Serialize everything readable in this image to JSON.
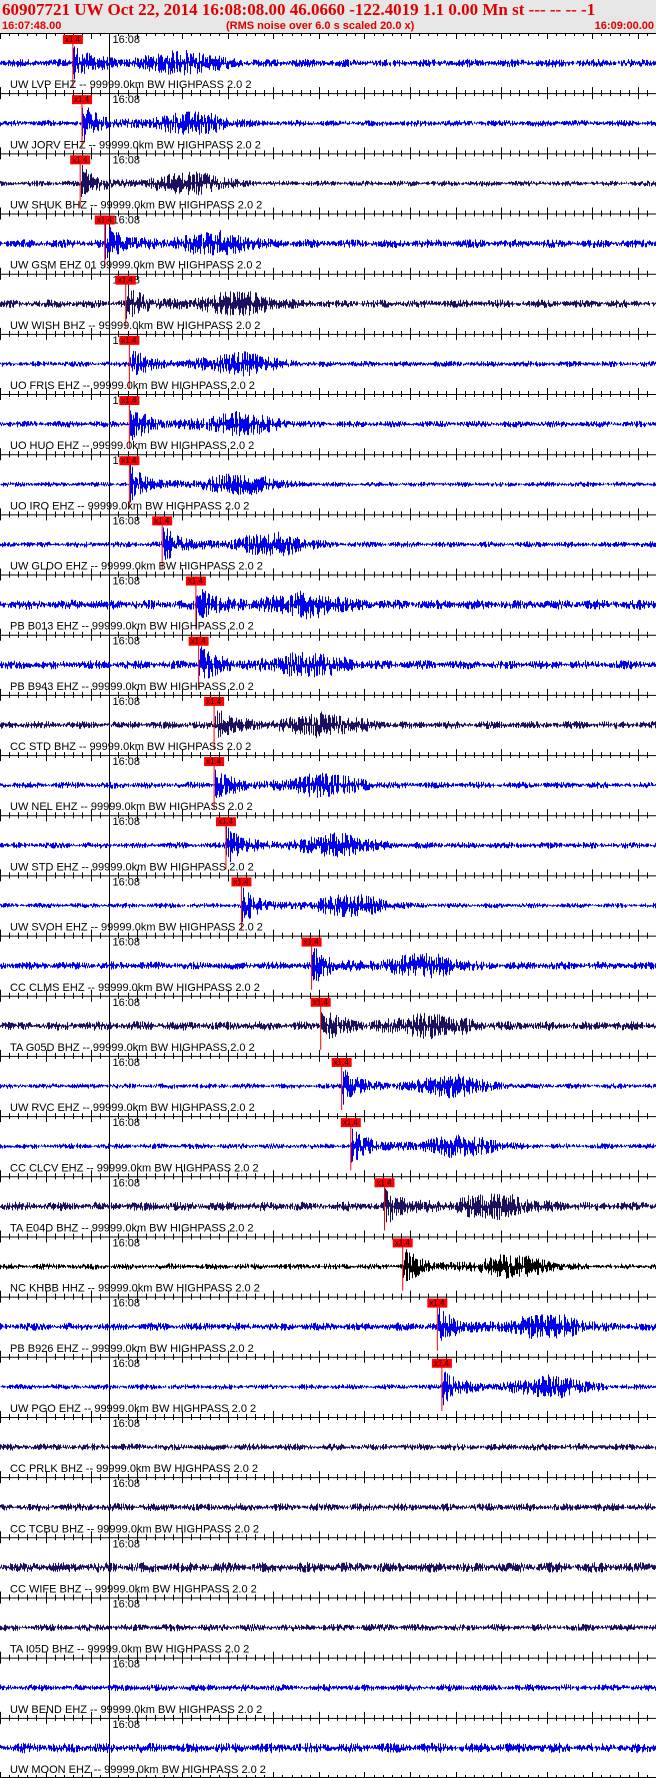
{
  "header": {
    "title": "60907721 UW Oct 22, 2014 16:08:08.00   46.0660 -122.4019  1.1 0.00 Mn st --- -- --  -1",
    "start_time": "16:07:48.00",
    "note": "(RMS noise over 6.0 s scaled 20.0 x)",
    "end_time": "16:09:00.00"
  },
  "colors": {
    "header_text": "#e00000",
    "header_bg": "#e6e6e6",
    "pick": "#ff0000"
  },
  "chart_data": {
    "type": "line",
    "title": "60907721 UW Oct 22, 2014 16:08:08.00   46.0660 -122.4019  1.1 0.00 Mn st --- -- --  -1",
    "x_range": [
      "16:07:48.00",
      "16:09:00.00"
    ],
    "x_range_seconds": [
      0,
      72
    ],
    "minute_tick_label": "16:08",
    "minute_tick_seconds": 12,
    "pick_tag": "x1.4",
    "traces": [
      {
        "label": "UW LVP EHZ -- 99999.0km BW  HIGHPASS  2.0  2",
        "pick_seconds": 8.0,
        "color": "#0000ee"
      },
      {
        "label": "UW JORV EHZ -- 99999.0km BW  HIGHPASS  2.0  2",
        "pick_seconds": 9.0,
        "color": "#0000ee"
      },
      {
        "label": "UW SHUK BHZ -- 99999.0km BW  HIGHPASS  2.0  2",
        "pick_seconds": 8.8,
        "color": "#1c1060"
      },
      {
        "label": "UW GSM EHZ 01 99999.0km BW  HIGHPASS  2.0  2",
        "pick_seconds": 11.5,
        "color": "#0000ee"
      },
      {
        "label": "UW WISH BHZ -- 99999.0km BW  HIGHPASS  2.0  2",
        "pick_seconds": 13.8,
        "color": "#1c1060"
      },
      {
        "label": "UO FRIS EHZ -- 99999.0km BW  HIGHPASS  2.0  2",
        "pick_seconds": 14.2,
        "color": "#0000ee"
      },
      {
        "label": "UO HUO EHZ -- 99999.0km BW  HIGHPASS  2.0  2",
        "pick_seconds": 14.2,
        "color": "#0000ee"
      },
      {
        "label": "UO IRO EHZ -- 99999.0km BW  HIGHPASS  2.0  2",
        "pick_seconds": 14.2,
        "color": "#0000ee"
      },
      {
        "label": "UW GLDO EHZ -- 99999.0km BW  HIGHPASS  2.0  2",
        "pick_seconds": 17.8,
        "color": "#0000ee"
      },
      {
        "label": "PB B013 EHZ -- 99999.0km BW  HIGHPASS  2.0  2",
        "pick_seconds": 21.5,
        "color": "#0000ee"
      },
      {
        "label": "PB B943 EHZ -- 99999.0km BW  HIGHPASS  2.0  2",
        "pick_seconds": 21.8,
        "color": "#0000ee"
      },
      {
        "label": "CC STD BHZ -- 99999.0km BW  HIGHPASS  2.0  2",
        "pick_seconds": 23.5,
        "color": "#1c1060"
      },
      {
        "label": "UW NEL EHZ -- 99999.0km BW  HIGHPASS  2.0  2",
        "pick_seconds": 23.5,
        "color": "#0000ee"
      },
      {
        "label": "UW STD EHZ -- 99999.0km BW  HIGHPASS  2.0  2",
        "pick_seconds": 24.8,
        "color": "#0000ee"
      },
      {
        "label": "UW SVOH EHZ -- 99999.0km BW  HIGHPASS  2.0  2",
        "pick_seconds": 26.5,
        "color": "#0000ee"
      },
      {
        "label": "CC CLMS EHZ -- 99999.0km BW  HIGHPASS  2.0  2",
        "pick_seconds": 34.2,
        "color": "#0000ee"
      },
      {
        "label": "TA G05D BHZ -- 99999.0km BW  HIGHPASS  2.0  2",
        "pick_seconds": 35.2,
        "color": "#1c1060"
      },
      {
        "label": "UW RVC EHZ -- 99999.0km BW  HIGHPASS  2.0  2",
        "pick_seconds": 37.5,
        "color": "#0000ee"
      },
      {
        "label": "CC CLCV EHZ -- 99999.0km BW  HIGHPASS  2.0  2",
        "pick_seconds": 38.5,
        "color": "#0000ee"
      },
      {
        "label": "TA E04D BHZ -- 99999.0km BW  HIGHPASS  2.0  2",
        "pick_seconds": 42.2,
        "color": "#1c1060"
      },
      {
        "label": "NC KHBB HHZ -- 99999.0km BW  HIGHPASS  2.0  2",
        "pick_seconds": 44.2,
        "color": "#000000"
      },
      {
        "label": "PB B926 EHZ -- 99999.0km BW  HIGHPASS  2.0  2",
        "pick_seconds": 48.0,
        "color": "#0000ee"
      },
      {
        "label": "UW PGO EHZ -- 99999.0km BW  HIGHPASS  2.0  2",
        "pick_seconds": 48.5,
        "color": "#0000ee"
      },
      {
        "label": "CC PRLK BHZ -- 99999.0km BW  HIGHPASS  2.0  2",
        "pick_seconds": null,
        "color": "#1c1060"
      },
      {
        "label": "CC TCBU BHZ -- 99999.0km BW  HIGHPASS  2.0  2",
        "pick_seconds": null,
        "color": "#1c1060"
      },
      {
        "label": "CC WIFE BHZ -- 99999.0km BW  HIGHPASS  2.0  2",
        "pick_seconds": null,
        "color": "#1c1060"
      },
      {
        "label": "TA I05D BHZ -- 99999.0km BW  HIGHPASS  2.0  2",
        "pick_seconds": null,
        "color": "#1c1060"
      },
      {
        "label": "UW BEND EHZ -- 99999.0km BW  HIGHPASS  2.0  2",
        "pick_seconds": null,
        "color": "#0000ee"
      },
      {
        "label": "UW MOON EHZ -- 99999.0km BW  HIGHPASS  2.0  2",
        "pick_seconds": null,
        "color": "#0000ee"
      }
    ]
  }
}
